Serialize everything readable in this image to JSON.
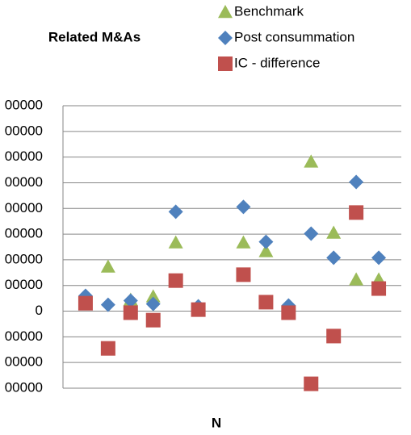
{
  "chart_data": {
    "type": "scatter",
    "title": "Related M&As",
    "x_label": "N",
    "x": [
      1,
      2,
      3,
      4,
      5,
      6,
      8,
      9,
      10,
      11,
      12,
      13,
      14
    ],
    "xlim": [
      0,
      15
    ],
    "ylim": [
      -300000,
      800000
    ],
    "yticks": [
      {
        "value": -300000,
        "label": "00000"
      },
      {
        "value": -200000,
        "label": "00000"
      },
      {
        "value": -100000,
        "label": "00000"
      },
      0,
      {
        "value": 100000,
        "label": "00000"
      },
      {
        "value": 200000,
        "label": "00000"
      },
      {
        "value": 300000,
        "label": "00000"
      },
      {
        "value": 400000,
        "label": "00000"
      },
      {
        "value": 500000,
        "label": "00000"
      },
      {
        "value": 600000,
        "label": "00000"
      },
      {
        "value": 700000,
        "label": "00000"
      },
      {
        "value": 800000,
        "label": "00000"
      }
    ],
    "grid": true,
    "series": [
      {
        "name": "Benchmark",
        "color": "#9bbb59",
        "marker": "triangle",
        "values": [
          null,
          173000,
          44000,
          57000,
          267000,
          null,
          267000,
          233000,
          null,
          582000,
          305000,
          123000,
          123000
        ]
      },
      {
        "name": "Post consummation",
        "color": "#4f81bd",
        "marker": "diamond",
        "values": [
          60000,
          25000,
          41000,
          28000,
          387000,
          19000,
          406000,
          270000,
          22000,
          302000,
          208000,
          503000,
          208000
        ]
      },
      {
        "name": "IC - difference",
        "color": "#c0504d",
        "marker": "square",
        "values": [
          31000,
          -145000,
          -6000,
          -35000,
          119000,
          6000,
          142000,
          35000,
          -6000,
          -283000,
          -97000,
          384000,
          88000
        ]
      }
    ]
  }
}
